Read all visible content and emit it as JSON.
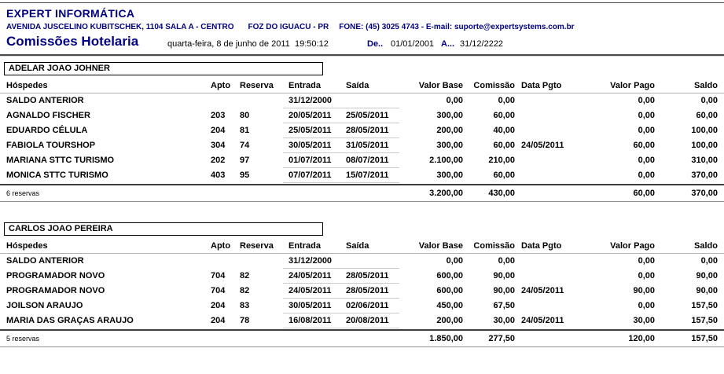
{
  "page": {
    "company": "EXPERT INFORMÁTICA",
    "address_street": "AVENIDA JUSCELINO KUBITSCHEK, 1104 SALA A - CENTRO",
    "address_city": "FOZ DO IGUACU - PR",
    "address_contact": "FONE: (45) 3025 4743 - E-mail: suporte@expertsystems.com.br",
    "report_title": "Comissões Hotelaria",
    "report_date": "quarta-feira, 8 de junho de 2011",
    "report_time": "19:50:12",
    "from_label": "De..",
    "from_value": "01/01/2001",
    "to_label": "A...",
    "to_value": "31/12/2222"
  },
  "colors": {
    "brand_navy": "#000080"
  },
  "table": {
    "columns": [
      "Hóspedes",
      "Apto",
      "Reserva",
      "Entrada",
      "Saída",
      "Valor Base",
      "Comissão",
      "Data Pgto",
      "Valor Pago",
      "Saldo"
    ]
  },
  "sections": [
    {
      "name": "ADELAR JOAO JOHNER",
      "rows": [
        {
          "guest": "SALDO ANTERIOR",
          "apto": "",
          "reserva": "",
          "entrada": "31/12/2000",
          "saida": "",
          "valor_base": "0,00",
          "comissao": "0,00",
          "data_pgto": "",
          "valor_pago": "0,00",
          "saldo": "0,00"
        },
        {
          "guest": "AGNALDO FISCHER",
          "apto": "203",
          "reserva": "80",
          "entrada": "20/05/2011",
          "saida": "25/05/2011",
          "valor_base": "300,00",
          "comissao": "60,00",
          "data_pgto": "",
          "valor_pago": "0,00",
          "saldo": "60,00"
        },
        {
          "guest": "EDUARDO CÉLULA",
          "apto": "204",
          "reserva": "81",
          "entrada": "25/05/2011",
          "saida": "28/05/2011",
          "valor_base": "200,00",
          "comissao": "40,00",
          "data_pgto": "",
          "valor_pago": "0,00",
          "saldo": "100,00"
        },
        {
          "guest": "FABIOLA TOURSHOP",
          "apto": "304",
          "reserva": "74",
          "entrada": "30/05/2011",
          "saida": "31/05/2011",
          "valor_base": "300,00",
          "comissao": "60,00",
          "data_pgto": "24/05/2011",
          "valor_pago": "60,00",
          "saldo": "100,00"
        },
        {
          "guest": "MARIANA STTC TURISMO",
          "apto": "202",
          "reserva": "97",
          "entrada": "01/07/2011",
          "saida": "08/07/2011",
          "valor_base": "2.100,00",
          "comissao": "210,00",
          "data_pgto": "",
          "valor_pago": "0,00",
          "saldo": "310,00"
        },
        {
          "guest": "MONICA STTC TURISMO",
          "apto": "403",
          "reserva": "95",
          "entrada": "07/07/2011",
          "saida": "15/07/2011",
          "valor_base": "300,00",
          "comissao": "60,00",
          "data_pgto": "",
          "valor_pago": "0,00",
          "saldo": "370,00"
        }
      ],
      "summary": {
        "label": "6 reservas",
        "valor_base": "3.200,00",
        "comissao": "430,00",
        "valor_pago": "60,00",
        "saldo": "370,00"
      }
    },
    {
      "name": "CARLOS JOAO PEREIRA",
      "rows": [
        {
          "guest": "SALDO ANTERIOR",
          "apto": "",
          "reserva": "",
          "entrada": "31/12/2000",
          "saida": "",
          "valor_base": "0,00",
          "comissao": "0,00",
          "data_pgto": "",
          "valor_pago": "0,00",
          "saldo": "0,00"
        },
        {
          "guest": "PROGRAMADOR NOVO",
          "apto": "704",
          "reserva": "82",
          "entrada": "24/05/2011",
          "saida": "28/05/2011",
          "valor_base": "600,00",
          "comissao": "90,00",
          "data_pgto": "",
          "valor_pago": "0,00",
          "saldo": "90,00"
        },
        {
          "guest": "PROGRAMADOR NOVO",
          "apto": "704",
          "reserva": "82",
          "entrada": "24/05/2011",
          "saida": "28/05/2011",
          "valor_base": "600,00",
          "comissao": "90,00",
          "data_pgto": "24/05/2011",
          "valor_pago": "90,00",
          "saldo": "90,00"
        },
        {
          "guest": "JOILSON ARAUJO",
          "apto": "204",
          "reserva": "83",
          "entrada": "30/05/2011",
          "saida": "02/06/2011",
          "valor_base": "450,00",
          "comissao": "67,50",
          "data_pgto": "",
          "valor_pago": "0,00",
          "saldo": "157,50"
        },
        {
          "guest": "MARIA DAS GRAÇAS ARAUJO",
          "apto": "204",
          "reserva": "78",
          "entrada": "16/08/2011",
          "saida": "20/08/2011",
          "valor_base": "200,00",
          "comissao": "30,00",
          "data_pgto": "24/05/2011",
          "valor_pago": "30,00",
          "saldo": "157,50"
        }
      ],
      "summary": {
        "label": "5 reservas",
        "valor_base": "1.850,00",
        "comissao": "277,50",
        "valor_pago": "120,00",
        "saldo": "157,50"
      }
    }
  ]
}
